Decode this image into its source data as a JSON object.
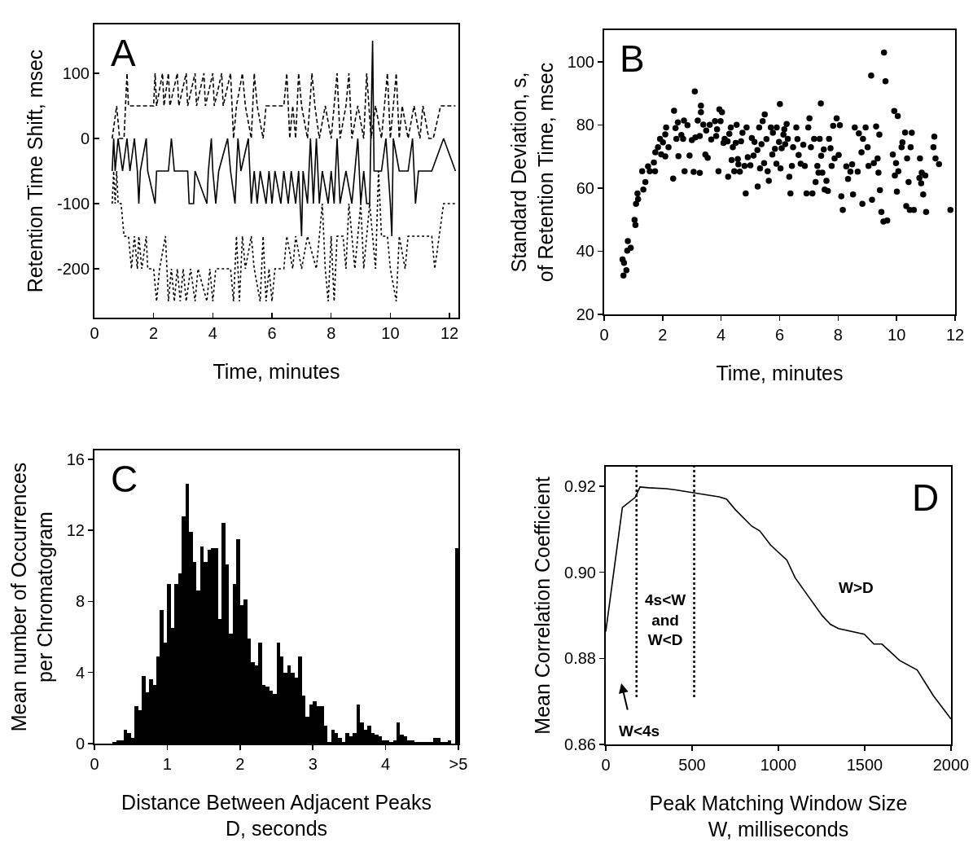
{
  "chart_data": [
    {
      "type": "line",
      "xlabel": "Time, minutes",
      "ylabel": "Retention Time Shift, msec",
      "annotations": [
        "A"
      ],
      "xlim": [
        0,
        12.3
      ],
      "ylim": [
        -275,
        175
      ],
      "xticks": [
        0,
        2,
        4,
        6,
        8,
        10,
        12
      ],
      "yticks": [
        -200,
        -100,
        0,
        100
      ],
      "series": [
        {
          "color": "#000000",
          "line_style": "dashed",
          "x": [
            0.6,
            0.75,
            0.85,
            1.0,
            1.1,
            1.15,
            2.0,
            2.05,
            2.1,
            2.3,
            2.35,
            2.5,
            2.55,
            2.8,
            2.85,
            3.1,
            3.15,
            3.4,
            3.45,
            3.7,
            3.75,
            4.0,
            4.05,
            4.3,
            4.35,
            4.6,
            4.65,
            4.7,
            4.8,
            5.0,
            5.1,
            5.3,
            5.4,
            5.5,
            5.7,
            5.8,
            6.0,
            6.4,
            6.5,
            6.6,
            6.7,
            6.8,
            6.9,
            7.0,
            7.2,
            7.35,
            7.45,
            7.6,
            7.8,
            8.0,
            8.2,
            8.3,
            8.5,
            8.6,
            8.7,
            8.9,
            9.1,
            9.2,
            9.35,
            9.5,
            9.7,
            9.9,
            10.0,
            10.2,
            10.3,
            10.4,
            10.6,
            10.8,
            11.0,
            11.1,
            11.3,
            11.45,
            11.7,
            12.2
          ],
          "values": [
            0,
            50,
            0,
            0,
            100,
            50,
            50,
            100,
            50,
            100,
            50,
            100,
            50,
            100,
            50,
            100,
            50,
            100,
            50,
            100,
            50,
            100,
            50,
            100,
            50,
            100,
            50,
            0,
            50,
            100,
            50,
            0,
            100,
            50,
            0,
            50,
            50,
            50,
            100,
            0,
            50,
            0,
            100,
            50,
            0,
            100,
            50,
            0,
            50,
            0,
            100,
            0,
            50,
            100,
            0,
            50,
            0,
            100,
            0,
            50,
            0,
            100,
            0,
            100,
            0,
            50,
            0,
            50,
            0,
            50,
            0,
            0,
            50,
            50
          ]
        },
        {
          "color": "#000000",
          "line_style": "solid",
          "x": [
            0.6,
            0.65,
            0.7,
            0.8,
            0.95,
            1.1,
            1.2,
            1.35,
            1.45,
            1.5,
            1.55,
            1.75,
            1.8,
            2.05,
            2.1,
            2.5,
            2.6,
            2.7,
            3.15,
            3.2,
            3.35,
            3.4,
            3.8,
            3.85,
            3.95,
            4.0,
            4.1,
            4.2,
            4.5,
            4.6,
            4.75,
            4.85,
            4.95,
            5.2,
            5.3,
            5.4,
            5.5,
            5.6,
            5.8,
            5.9,
            6.0,
            6.1,
            6.3,
            6.4,
            6.55,
            6.65,
            6.8,
            6.9,
            7.0,
            7.05,
            7.2,
            7.3,
            7.4,
            7.5,
            7.6,
            7.7,
            7.9,
            8.0,
            8.1,
            8.2,
            8.3,
            8.5,
            8.7,
            8.9,
            9.0,
            9.1,
            9.2,
            9.3,
            9.4,
            9.45,
            9.7,
            9.85,
            10.0,
            10.05,
            10.1,
            10.3,
            10.6,
            10.75,
            10.85,
            10.95,
            11.4,
            11.8,
            12.2
          ],
          "values": [
            -50,
            0,
            -50,
            0,
            -50,
            0,
            -50,
            0,
            -50,
            -100,
            -50,
            0,
            -50,
            -100,
            -50,
            -50,
            0,
            -50,
            -50,
            -100,
            -100,
            -50,
            -100,
            -50,
            0,
            -50,
            -100,
            -50,
            0,
            -50,
            -100,
            0,
            -50,
            0,
            -100,
            -50,
            -100,
            -50,
            -100,
            -50,
            -100,
            -50,
            -100,
            -50,
            -100,
            -50,
            -100,
            -50,
            -150,
            -50,
            -100,
            0,
            -100,
            0,
            -100,
            -50,
            -100,
            -50,
            -100,
            0,
            -100,
            -50,
            -100,
            0,
            -100,
            -50,
            -100,
            -100,
            150,
            -50,
            -50,
            0,
            -100,
            -150,
            0,
            -50,
            -50,
            0,
            -100,
            -50,
            -50,
            0,
            -50
          ]
        },
        {
          "color": "#000000",
          "line_style": "dotted",
          "x": [
            0.6,
            0.65,
            0.7,
            0.75,
            0.8,
            0.9,
            1.0,
            1.15,
            1.25,
            1.35,
            1.45,
            1.5,
            1.6,
            1.75,
            1.8,
            2.0,
            2.1,
            2.2,
            2.4,
            2.5,
            2.6,
            2.7,
            2.8,
            2.9,
            3.0,
            3.1,
            3.25,
            3.4,
            3.5,
            3.8,
            3.9,
            4.0,
            4.1,
            4.6,
            4.7,
            4.8,
            4.9,
            5.0,
            5.1,
            5.3,
            5.4,
            5.6,
            5.7,
            5.8,
            5.9,
            6.0,
            6.1,
            6.4,
            6.5,
            6.7,
            6.8,
            7.0,
            7.2,
            7.5,
            7.6,
            7.7,
            7.8,
            7.9,
            8.0,
            8.1,
            8.2,
            8.4,
            8.5,
            8.6,
            8.8,
            9.0,
            9.1,
            9.3,
            9.5,
            9.6,
            9.7,
            9.9,
            10.0,
            10.2,
            10.3,
            10.5,
            10.6,
            11.0,
            11.4,
            11.5,
            11.8,
            12.2
          ],
          "values": [
            -100,
            -50,
            -100,
            -50,
            -100,
            -100,
            -150,
            -150,
            -200,
            -150,
            -200,
            -150,
            -200,
            -150,
            -200,
            -200,
            -250,
            -200,
            -150,
            -250,
            -200,
            -250,
            -200,
            -250,
            -200,
            -250,
            -200,
            -250,
            -200,
            -250,
            -200,
            -250,
            -200,
            -200,
            -250,
            -150,
            -250,
            -150,
            -200,
            -150,
            -200,
            -250,
            -150,
            -250,
            -200,
            -250,
            -200,
            -200,
            -150,
            -200,
            -150,
            -200,
            -150,
            -200,
            -150,
            -100,
            -200,
            -250,
            -150,
            -250,
            -150,
            -150,
            -200,
            -100,
            -200,
            -100,
            -200,
            -100,
            -200,
            -50,
            -150,
            -150,
            -200,
            -250,
            -150,
            -200,
            -150,
            -150,
            -150,
            -200,
            -100,
            -100
          ]
        }
      ]
    },
    {
      "type": "scatter",
      "marker": "circle",
      "color": "#000000",
      "xlabel": "Time, minutes",
      "ylabel": "Standard Deviation, s,\nof Retention Time, msec",
      "annotations": [
        "B"
      ],
      "xlim": [
        0,
        12
      ],
      "ylim": [
        20,
        110
      ],
      "xticks": [
        0,
        2,
        4,
        6,
        8,
        10,
        12
      ],
      "yticks": [
        20,
        40,
        60,
        80,
        100
      ],
      "x": [
        0.63,
        0.68,
        0.66,
        0.76,
        0.81,
        0.79,
        0.91,
        1.04,
        1.07,
        1.09,
        1.14,
        1.16,
        1.3,
        1.34,
        1.41,
        1.5,
        1.56,
        1.7,
        1.74,
        1.75,
        1.84,
        1.91,
        1.95,
        2.01,
        2.09,
        2.12,
        2.09,
        2.2,
        2.36,
        2.39,
        2.44,
        2.47,
        2.52,
        2.54,
        2.64,
        2.7,
        2.73,
        2.75,
        2.85,
        2.92,
        3.0,
        3.06,
        3.1,
        3.12,
        3.2,
        3.27,
        3.31,
        3.31,
        3.27,
        3.39,
        3.46,
        3.49,
        3.54,
        3.61,
        3.66,
        3.79,
        3.83,
        3.86,
        3.91,
        3.94,
        3.98,
        4.03,
        4.08,
        4.12,
        4.22,
        4.24,
        4.28,
        4.33,
        4.36,
        4.4,
        4.45,
        4.5,
        4.53,
        4.57,
        4.59,
        4.64,
        4.68,
        4.73,
        4.8,
        4.84,
        4.87,
        4.91,
        5.0,
        5.05,
        5.11,
        5.14,
        5.24,
        5.25,
        5.3,
        5.33,
        5.38,
        5.42,
        5.47,
        5.49,
        5.55,
        5.59,
        5.63,
        5.7,
        5.75,
        5.77,
        5.84,
        5.89,
        5.9,
        5.98,
        6.01,
        6.03,
        6.07,
        6.13,
        6.16,
        6.19,
        6.24,
        6.28,
        6.33,
        6.37,
        6.42,
        6.46,
        6.57,
        6.61,
        6.65,
        6.72,
        6.81,
        6.86,
        6.92,
        6.98,
        7.02,
        7.07,
        7.12,
        7.18,
        7.23,
        7.29,
        7.33,
        7.37,
        7.41,
        7.42,
        7.46,
        7.51,
        7.54,
        7.6,
        7.65,
        7.69,
        7.74,
        7.78,
        7.83,
        7.88,
        7.95,
        8.02,
        8.06,
        8.11,
        8.16,
        8.28,
        8.34,
        8.42,
        8.48,
        8.51,
        8.57,
        8.67,
        8.71,
        8.8,
        8.85,
        8.83,
        8.94,
        9.01,
        9.04,
        9.13,
        9.16,
        9.22,
        9.3,
        9.35,
        9.38,
        9.41,
        9.43,
        9.48,
        9.55,
        9.57,
        9.62,
        9.68,
        9.87,
        9.92,
        9.94,
        9.98,
        10.01,
        10.04,
        10.06,
        10.17,
        10.2,
        10.29,
        10.33,
        10.36,
        10.41,
        10.45,
        10.48,
        10.52,
        10.59,
        10.78,
        10.8,
        10.84,
        10.86,
        10.91,
        10.98,
        11.01,
        11.26,
        11.29,
        11.33,
        11.45,
        11.84
      ],
      "values": [
        37.4,
        36.3,
        32.3,
        34,
        43.2,
        40.2,
        41.1,
        49.9,
        48.3,
        55,
        58.3,
        56.5,
        65.3,
        59.5,
        61.9,
        66.9,
        65.3,
        68.1,
        65.3,
        71.3,
        72.9,
        75.6,
        70.7,
        74.5,
        70,
        79.2,
        77,
        72.9,
        63,
        84.5,
        79,
        75.6,
        80.8,
        70.1,
        76.8,
        75.6,
        81.4,
        65.3,
        79.9,
        70.3,
        75.2,
        65.1,
        90.6,
        76,
        81.4,
        64.8,
        86.1,
        84,
        76.5,
        80.1,
        70.6,
        78.2,
        69.6,
        80,
        75.4,
        81.2,
        76.5,
        78.6,
        65.3,
        84.9,
        81.2,
        84,
        74.3,
        75.6,
        74.8,
        63.6,
        77.2,
        79.2,
        68.9,
        72.9,
        65.3,
        74.3,
        80,
        69.2,
        67.5,
        65.2,
        74.8,
        77.5,
        67,
        58.3,
        79.2,
        69.8,
        67.2,
        75.8,
        70.3,
        74.6,
        72,
        60.5,
        79.2,
        66.2,
        73.9,
        81.2,
        67.9,
        83.3,
        75.5,
        65.3,
        62.3,
        79.2,
        70.6,
        77.5,
        72.4,
        67.7,
        79.2,
        74.6,
        86.6,
        66.2,
        72.6,
        76.9,
        78.6,
        73.9,
        80.3,
        75.6,
        63.6,
        58.3,
        67,
        72.9,
        79.2,
        75.5,
        70.5,
        67.7,
        73.7,
        67,
        58.3,
        79.2,
        82.1,
        72.9,
        58.3,
        75.6,
        61.9,
        67,
        64.9,
        75.6,
        86.8,
        70.2,
        64.9,
        72.2,
        59.5,
        62.3,
        59.1,
        75.6,
        72.6,
        67,
        79.7,
        69.4,
        82.1,
        70.5,
        79.9,
        57.4,
        53.1,
        66.9,
        62.9,
        65.2,
        67.5,
        58,
        79.2,
        65.2,
        77.3,
        71.3,
        75.6,
        55,
        79.2,
        72.9,
        67,
        95.6,
        56.3,
        67.9,
        79.5,
        69.4,
        64.9,
        76.9,
        59.3,
        52.4,
        49.4,
        102.9,
        93.8,
        49.7,
        70.6,
        84.4,
        64,
        67.9,
        58.9,
        82.8,
        65.3,
        72.9,
        74.5,
        77.6,
        54.3,
        69.4,
        61.9,
        53.1,
        72.9,
        77.5,
        53.1,
        63.2,
        69.4,
        61.5,
        64.9,
        58,
        64,
        52.4,
        72.9,
        76.3,
        69.4,
        67.6,
        53.1
      ]
    },
    {
      "type": "histogram",
      "color": "#000000",
      "xlabel": "Distance Between Adjacent Peaks\nD, seconds",
      "ylabel": "Mean number of Occurrences\nper Chromatogram",
      "annotations": [
        "C"
      ],
      "xlim": [
        0,
        5
      ],
      "ylim": [
        0,
        16.5
      ],
      "xticks": [
        0,
        1,
        2,
        3,
        4,
        {
          "value": 5,
          "label": ">5"
        }
      ],
      "yticks": [
        0,
        4,
        8,
        12,
        16
      ],
      "bins": [
        0,
        0.05,
        0.1,
        0.15,
        0.2,
        0.25,
        0.3,
        0.35,
        0.4,
        0.45,
        0.5,
        0.55,
        0.6,
        0.65,
        0.7,
        0.75,
        0.8,
        0.85,
        0.9,
        0.95,
        1,
        1.05,
        1.1,
        1.15,
        1.2,
        1.25,
        1.3,
        1.35,
        1.4,
        1.45,
        1.5,
        1.55,
        1.6,
        1.65,
        1.7,
        1.75,
        1.8,
        1.85,
        1.9,
        1.95,
        2,
        2.05,
        2.1,
        2.15,
        2.2,
        2.25,
        2.3,
        2.35,
        2.4,
        2.45,
        2.5,
        2.55,
        2.6,
        2.65,
        2.7,
        2.75,
        2.8,
        2.85,
        2.9,
        2.95,
        3,
        3.05,
        3.1,
        3.15,
        3.2,
        3.25,
        3.3,
        3.35,
        3.4,
        3.45,
        3.5,
        3.55,
        3.6,
        3.65,
        3.7,
        3.75,
        3.8,
        3.85,
        3.9,
        3.95,
        4,
        4.05,
        4.1,
        4.15,
        4.2,
        4.25,
        4.3,
        4.35,
        4.4,
        4.45,
        4.5,
        4.55,
        4.6,
        4.65,
        4.7,
        4.75,
        4.8,
        4.85,
        4.9,
        4.95,
        5
      ],
      "values": [
        0,
        0,
        0,
        0,
        0,
        0.1,
        0.2,
        0.2,
        0.8,
        0.6,
        0.3,
        2.1,
        1.9,
        3.8,
        2.9,
        3.6,
        3.3,
        4.9,
        7.5,
        5.7,
        9.0,
        6.5,
        9.0,
        9.6,
        12.8,
        14.6,
        11.9,
        10.2,
        8.6,
        11.1,
        10.2,
        10.9,
        11.0,
        11.0,
        7.0,
        12.4,
        10.1,
        6.2,
        9.0,
        11.5,
        7.8,
        8.1,
        5.9,
        4.6,
        4.4,
        5.7,
        3.3,
        3.2,
        3.0,
        2.8,
        5.7,
        4.9,
        4.0,
        4.4,
        4.0,
        3.7,
        4.9,
        2.7,
        1.5,
        2.2,
        2.4,
        2.1,
        2.1,
        1.0,
        0.1,
        0.8,
        0.6,
        0.3,
        0.1,
        0.6,
        0.4,
        0.6,
        2.2,
        1.2,
        0.8,
        1.0,
        0.6,
        0.5,
        0.4,
        0.2,
        0.2,
        0.1,
        0.2,
        1.2,
        0.5,
        0.4,
        0.2,
        0.2,
        0.1,
        0.1,
        0.1,
        0.1,
        0.1,
        0.3,
        0.3,
        0.1,
        0.1,
        0.2,
        0,
        11
      ]
    },
    {
      "type": "line",
      "xlabel": "Peak Matching Window Size\nW, milliseconds",
      "ylabel": "Mean Correlation Coefficient",
      "xlim": [
        0,
        2000
      ],
      "ylim": [
        0.86,
        0.9245
      ],
      "xticks": [
        0,
        500,
        1000,
        1500,
        2000
      ],
      "yticks": [
        0.86,
        0.88,
        {
          "value": 0.9,
          "label": "0.90"
        },
        0.92
      ],
      "annotations": [
        "D",
        "W<4s",
        "4s<W\nand\nW<D",
        "W>D"
      ],
      "ref_lines": [
        {
          "axis": "x",
          "value": 178,
          "line_style": "dotted"
        },
        {
          "axis": "x",
          "value": 512,
          "line_style": "dotted"
        }
      ],
      "series": [
        {
          "color": "#000000",
          "x": [
            0,
            96,
            171,
            198,
            248,
            350,
            405,
            515,
            625,
            656,
            699,
            751,
            845,
            892,
            955,
            1049,
            1097,
            1175,
            1254,
            1301,
            1348,
            1498,
            1553,
            1600,
            1702,
            1804,
            1898,
            2000
          ],
          "values": [
            0.8862,
            0.915,
            0.9174,
            0.9198,
            0.9196,
            0.9194,
            0.9191,
            0.9184,
            0.9177,
            0.9175,
            0.917,
            0.9145,
            0.9107,
            0.9096,
            0.9063,
            0.9028,
            0.8987,
            0.8943,
            0.8899,
            0.8879,
            0.8869,
            0.8856,
            0.8833,
            0.8833,
            0.8795,
            0.8773,
            0.8713,
            0.8659
          ]
        }
      ]
    }
  ]
}
